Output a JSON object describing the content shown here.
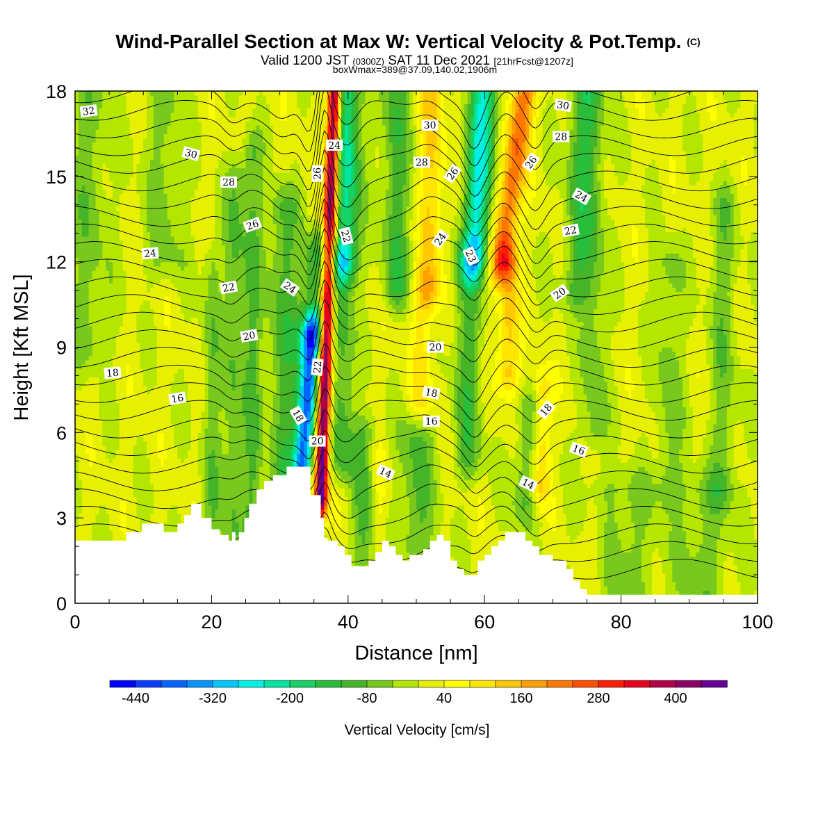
{
  "chart_data": {
    "type": "heatmap",
    "title": "Wind-Parallel Section at Max W: Vertical Velocity & Pot.Temp.",
    "title_mark": "(C)",
    "subtitle_main": "Valid 1200 JST",
    "subtitle_utc": "(0300Z)",
    "subtitle_date": "SAT 11 Dec 2021",
    "subtitle_fcst": "[21hrFcst@1207z]",
    "subtitle2": "boxWmax=389@37.09,140.02,1906m",
    "xlabel": "Distance [nm]",
    "ylabel": "Height [Kft MSL]",
    "xlim": [
      0,
      100
    ],
    "ylim": [
      0,
      18
    ],
    "x_ticks": [
      "0",
      "20",
      "40",
      "60",
      "80",
      "100"
    ],
    "y_ticks": [
      "0",
      "3",
      "6",
      "9",
      "12",
      "15",
      "18"
    ],
    "colorbar": {
      "title": "Vertical Velocity [cm/s]",
      "labels": [
        "-440",
        "-320",
        "-200",
        "-80",
        "40",
        "160",
        "280",
        "400"
      ],
      "min": -480,
      "max": 480,
      "colors": [
        "#0000ff",
        "#0a3cff",
        "#0064ff",
        "#0096ff",
        "#00c8ff",
        "#00f0e6",
        "#00e6a0",
        "#14d264",
        "#28be3c",
        "#46b428",
        "#78c81e",
        "#b4e600",
        "#e6f000",
        "#ffff00",
        "#ffe600",
        "#ffc800",
        "#ffa000",
        "#ff7800",
        "#ff5000",
        "#ff1e00",
        "#e6001e",
        "#b40046",
        "#8c0064",
        "#640096"
      ]
    },
    "velocity_features": [
      {
        "x": 36.0,
        "amp": 480,
        "width": 1.0,
        "tilt": 0.14,
        "y_from": 3.6,
        "y_to": 18
      },
      {
        "x": 33.3,
        "amp": -400,
        "width": 1.4,
        "tilt": 0.3,
        "y_from": 4.8,
        "y_to": 9.5
      },
      {
        "x": 34.5,
        "amp": -140,
        "width": 2.2,
        "tilt": 0.42,
        "y_from": 9.5,
        "y_to": 12.5
      },
      {
        "x": 39.5,
        "amp": -230,
        "width": 2.0,
        "tilt": 0.08,
        "y_from": 12,
        "y_to": 18
      },
      {
        "x": 39.0,
        "amp": -120,
        "width": 1.8,
        "tilt": 0.0,
        "y_from": 5,
        "y_to": 12
      },
      {
        "x": 30.5,
        "amp": -110,
        "width": 2.2,
        "tilt": 0.0,
        "y_from": 4,
        "y_to": 14
      },
      {
        "x": 23.0,
        "amp": -90,
        "width": 1.6,
        "tilt": 0.05,
        "y_from": 2.4,
        "y_to": 15
      },
      {
        "x": 26.0,
        "amp": -90,
        "width": 1.4,
        "tilt": 0.0,
        "y_from": 2.5,
        "y_to": 16
      },
      {
        "x": 20.0,
        "amp": -70,
        "width": 1.4,
        "tilt": 0.0,
        "y_from": 3,
        "y_to": 12
      },
      {
        "x": 58.5,
        "amp": -260,
        "width": 2.0,
        "tilt": 0.25,
        "y_from": 12,
        "y_to": 18
      },
      {
        "x": 57.5,
        "amp": -110,
        "width": 2.0,
        "tilt": 0.0,
        "y_from": 5,
        "y_to": 12
      },
      {
        "x": 62.5,
        "amp": 230,
        "width": 1.8,
        "tilt": 0.55,
        "y_from": 12,
        "y_to": 18
      },
      {
        "x": 63.5,
        "amp": 140,
        "width": 1.6,
        "tilt": 0.0,
        "y_from": 8,
        "y_to": 12
      },
      {
        "x": 68.0,
        "amp": 150,
        "width": 1.4,
        "tilt": 0.1,
        "y_from": 4,
        "y_to": 7.5
      },
      {
        "x": 66.0,
        "amp": -110,
        "width": 2.0,
        "tilt": 0.3,
        "y_from": 3.5,
        "y_to": 7
      },
      {
        "x": 52.0,
        "amp": 120,
        "width": 1.8,
        "tilt": 0.05,
        "y_from": 11,
        "y_to": 18
      },
      {
        "x": 47.0,
        "amp": -120,
        "width": 2.0,
        "tilt": 0.0,
        "y_from": 11,
        "y_to": 18
      },
      {
        "x": 51.0,
        "amp": 80,
        "width": 1.8,
        "tilt": 0.0,
        "y_from": 7,
        "y_to": 11
      },
      {
        "x": 42.5,
        "amp": -100,
        "width": 1.8,
        "tilt": 0.0,
        "y_from": 1.5,
        "y_to": 6
      },
      {
        "x": 50.0,
        "amp": -100,
        "width": 2.5,
        "tilt": 0.0,
        "y_from": 2,
        "y_to": 6
      },
      {
        "x": 44.5,
        "amp": 60,
        "width": 1.2,
        "tilt": 0.0,
        "y_from": 2,
        "y_to": 5
      },
      {
        "x": 73.5,
        "amp": -110,
        "width": 2.0,
        "tilt": 0.1,
        "y_from": 11,
        "y_to": 18
      },
      {
        "x": 76.0,
        "amp": -80,
        "width": 1.8,
        "tilt": 0.0,
        "y_from": 6,
        "y_to": 18
      },
      {
        "x": 80.0,
        "amp": -70,
        "width": 5.0,
        "tilt": 0.0,
        "y_from": 0,
        "y_to": 4
      },
      {
        "x": 92.0,
        "amp": -70,
        "width": 4.0,
        "tilt": 0.0,
        "y_from": 0,
        "y_to": 4
      },
      {
        "x": 87.0,
        "amp": -70,
        "width": 2.0,
        "tilt": 0.0,
        "y_from": 4,
        "y_to": 12
      },
      {
        "x": 95.0,
        "amp": -70,
        "width": 2.0,
        "tilt": 0.0,
        "y_from": 4,
        "y_to": 14
      },
      {
        "x": 2.0,
        "amp": -70,
        "width": 3.0,
        "tilt": 0.0,
        "y_from": 9,
        "y_to": 18
      },
      {
        "x": 13.0,
        "amp": -60,
        "width": 3.0,
        "tilt": 0.0,
        "y_from": 12,
        "y_to": 18
      },
      {
        "x": 76.5,
        "amp": 50,
        "width": 1.6,
        "tilt": 0.0,
        "y_from": 0.5,
        "y_to": 3
      }
    ],
    "terrain": [
      [
        0,
        2.2
      ],
      [
        7.5,
        2.2
      ],
      [
        7.5,
        2.5
      ],
      [
        9.8,
        2.5
      ],
      [
        9.8,
        2.8
      ],
      [
        13,
        2.8
      ],
      [
        13,
        2.5
      ],
      [
        15,
        2.5
      ],
      [
        15,
        2.8
      ],
      [
        16,
        2.8
      ],
      [
        16,
        3.1
      ],
      [
        17,
        3.1
      ],
      [
        17,
        3.5
      ],
      [
        18.5,
        3.5
      ],
      [
        18.5,
        3.0
      ],
      [
        20,
        3.0
      ],
      [
        20,
        2.6
      ],
      [
        21.2,
        2.6
      ],
      [
        21.2,
        2.4
      ],
      [
        22.5,
        2.4
      ],
      [
        22.5,
        2.2
      ],
      [
        23,
        2.2
      ],
      [
        23,
        2.5
      ],
      [
        23.5,
        2.5
      ],
      [
        23.5,
        2.2
      ],
      [
        24,
        2.2
      ],
      [
        24,
        2.5
      ],
      [
        24.8,
        2.5
      ],
      [
        24.8,
        3.0
      ],
      [
        25.5,
        3.0
      ],
      [
        25.5,
        3.5
      ],
      [
        26.6,
        3.5
      ],
      [
        26.6,
        4.0
      ],
      [
        27.7,
        4.0
      ],
      [
        27.7,
        4.3
      ],
      [
        29,
        4.3
      ],
      [
        29,
        4.5
      ],
      [
        31,
        4.5
      ],
      [
        31,
        4.8
      ],
      [
        34.5,
        4.8
      ],
      [
        34.5,
        3.8
      ],
      [
        36,
        3.8
      ],
      [
        36,
        3.0
      ],
      [
        36.5,
        3.0
      ],
      [
        36.5,
        2.3
      ],
      [
        37,
        2.3
      ],
      [
        37,
        2.2
      ],
      [
        38.5,
        2.2
      ],
      [
        38.5,
        2.0
      ],
      [
        39.5,
        2.0
      ],
      [
        39.5,
        1.7
      ],
      [
        40.5,
        1.7
      ],
      [
        40.5,
        1.3
      ],
      [
        43,
        1.3
      ],
      [
        43,
        1.5
      ],
      [
        44,
        1.5
      ],
      [
        44,
        1.8
      ],
      [
        45,
        1.8
      ],
      [
        45,
        2.2
      ],
      [
        46,
        2.2
      ],
      [
        46,
        2.0
      ],
      [
        47,
        2.0
      ],
      [
        47,
        1.7
      ],
      [
        48,
        1.7
      ],
      [
        48,
        1.5
      ],
      [
        49,
        1.5
      ],
      [
        49,
        1.7
      ],
      [
        51,
        1.7
      ],
      [
        51,
        1.9
      ],
      [
        52,
        1.9
      ],
      [
        52,
        2.2
      ],
      [
        53,
        2.2
      ],
      [
        53,
        2.4
      ],
      [
        54,
        2.4
      ],
      [
        54,
        2.2
      ],
      [
        55,
        2.2
      ],
      [
        55,
        1.5
      ],
      [
        56,
        1.5
      ],
      [
        56,
        1.2
      ],
      [
        57,
        1.2
      ],
      [
        57,
        1.0
      ],
      [
        59,
        1.0
      ],
      [
        59,
        1.5
      ],
      [
        60,
        1.5
      ],
      [
        60,
        1.7
      ],
      [
        61,
        1.7
      ],
      [
        61,
        2.0
      ],
      [
        62,
        2.0
      ],
      [
        62,
        2.2
      ],
      [
        63,
        2.2
      ],
      [
        63,
        2.5
      ],
      [
        66,
        2.5
      ],
      [
        66,
        2.2
      ],
      [
        67,
        2.2
      ],
      [
        67,
        2.0
      ],
      [
        68,
        2.0
      ],
      [
        68,
        1.7
      ],
      [
        70,
        1.7
      ],
      [
        70,
        1.5
      ],
      [
        72,
        1.5
      ],
      [
        72,
        1.2
      ],
      [
        73,
        1.2
      ],
      [
        73,
        0.8
      ],
      [
        74,
        0.8
      ],
      [
        74,
        0.5
      ],
      [
        75,
        0.5
      ],
      [
        75,
        0.3
      ],
      [
        100,
        0.3
      ]
    ],
    "theta_labels": [
      {
        "text": "32",
        "x": 2,
        "y": 17.3,
        "angle": -8
      },
      {
        "text": "30",
        "x": 17,
        "y": 15.8,
        "angle": 15
      },
      {
        "text": "28",
        "x": 22.5,
        "y": 14.8,
        "angle": 0
      },
      {
        "text": "26",
        "x": 26,
        "y": 13.3,
        "angle": -20
      },
      {
        "text": "24",
        "x": 11,
        "y": 12.3,
        "angle": -5
      },
      {
        "text": "22",
        "x": 22.5,
        "y": 11.1,
        "angle": -10
      },
      {
        "text": "20",
        "x": 25.5,
        "y": 9.4,
        "angle": -10
      },
      {
        "text": "18",
        "x": 5.5,
        "y": 8.1,
        "angle": -5
      },
      {
        "text": "16",
        "x": 15,
        "y": 7.2,
        "angle": -10
      },
      {
        "text": "24",
        "x": 31.5,
        "y": 11.1,
        "angle": 35
      },
      {
        "text": "22",
        "x": 35.5,
        "y": 8.3,
        "angle": -85
      },
      {
        "text": "18",
        "x": 32.7,
        "y": 6.6,
        "angle": 60
      },
      {
        "text": "20",
        "x": 35.5,
        "y": 5.7,
        "angle": 0
      },
      {
        "text": "24",
        "x": 38,
        "y": 16.1,
        "angle": 0
      },
      {
        "text": "26",
        "x": 35.5,
        "y": 15.1,
        "angle": -90
      },
      {
        "text": "22",
        "x": 39.7,
        "y": 12.9,
        "angle": 75
      },
      {
        "text": "30",
        "x": 52,
        "y": 16.8,
        "angle": 0
      },
      {
        "text": "28",
        "x": 50.8,
        "y": 15.5,
        "angle": 0
      },
      {
        "text": "26",
        "x": 55.3,
        "y": 15.1,
        "angle": -55
      },
      {
        "text": "24",
        "x": 53.5,
        "y": 12.8,
        "angle": -55
      },
      {
        "text": "23",
        "x": 58,
        "y": 12.2,
        "angle": 65
      },
      {
        "text": "20",
        "x": 52.8,
        "y": 9.0,
        "angle": 0
      },
      {
        "text": "18",
        "x": 52.2,
        "y": 7.4,
        "angle": 10
      },
      {
        "text": "16",
        "x": 52.2,
        "y": 6.4,
        "angle": 0
      },
      {
        "text": "14",
        "x": 45.5,
        "y": 4.6,
        "angle": 25
      },
      {
        "text": "30",
        "x": 71.5,
        "y": 17.5,
        "angle": 10
      },
      {
        "text": "28",
        "x": 71.2,
        "y": 16.4,
        "angle": 0
      },
      {
        "text": "26",
        "x": 66.8,
        "y": 15.5,
        "angle": -55
      },
      {
        "text": "24",
        "x": 74.2,
        "y": 14.3,
        "angle": 30
      },
      {
        "text": "22",
        "x": 72.6,
        "y": 13.1,
        "angle": -10
      },
      {
        "text": "20",
        "x": 71,
        "y": 10.9,
        "angle": -35
      },
      {
        "text": "18",
        "x": 69,
        "y": 6.8,
        "angle": -50
      },
      {
        "text": "16",
        "x": 73.8,
        "y": 5.4,
        "angle": 20
      },
      {
        "text": "14",
        "x": 66.4,
        "y": 4.2,
        "angle": 25
      }
    ]
  }
}
